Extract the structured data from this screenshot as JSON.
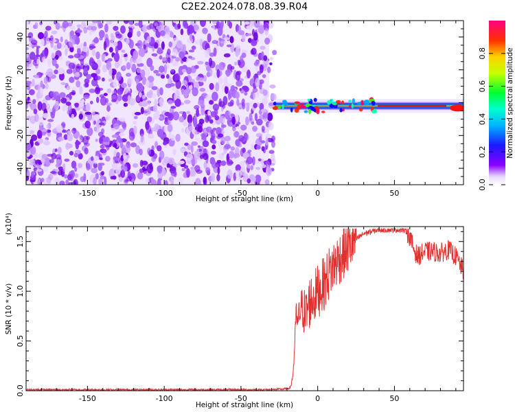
{
  "figure": {
    "title": "C2E2.2024.078.08.39.R04"
  },
  "chart_data": [
    {
      "type": "heatmap",
      "xlabel": "Height of straight line (km)",
      "ylabel": "Frequency (Hz)",
      "xlim": [
        -190,
        95
      ],
      "ylim": [
        -50,
        50
      ],
      "x_ticks": [
        -150,
        -100,
        -50,
        0,
        50
      ],
      "y_ticks": [
        -40,
        -20,
        0,
        20,
        40
      ],
      "grid": false,
      "colorbar": {
        "label": "Normalized spectral amplitude",
        "range": [
          0,
          1
        ],
        "ticks": [
          "0.0",
          "0.2",
          "0.4",
          "0.6",
          "0.8"
        ],
        "colormap": "rainbow (purple-blue-cyan-green-yellow-red-magenta)"
      },
      "features": {
        "noise_region_x": [
          -190,
          -28
        ],
        "noise_color": "#7a00e6",
        "signal_line": {
          "x_range": [
            -28,
            95
          ],
          "frequency_hz": -2,
          "description": "narrow band of high amplitude near 0 Hz"
        }
      }
    },
    {
      "type": "line",
      "xlabel": "Height of straight line (km)",
      "ylabel": "SNR (10 * v/v)",
      "y_scale_label": "(x10⁴)",
      "xlim": [
        -190,
        95
      ],
      "ylim": [
        0,
        1.65
      ],
      "x_ticks": [
        -150,
        -100,
        -50,
        0,
        50
      ],
      "y_ticks": [
        "0.0",
        "0.5",
        "1.0",
        "1.5"
      ],
      "grid": false,
      "color": "#e03030",
      "series": [
        {
          "x": [
            -190,
            -100,
            -30,
            -20,
            -18,
            -17,
            -16,
            -15,
            -14,
            -13,
            -12,
            -10,
            -8,
            -5,
            -2,
            0,
            3,
            5,
            8,
            10,
            15,
            20,
            25,
            30,
            35,
            40,
            45,
            50,
            55,
            58,
            60,
            62,
            65,
            70,
            75,
            80,
            85,
            90,
            95
          ],
          "values": [
            0.01,
            0.01,
            0.01,
            0.02,
            0.03,
            0.08,
            0.18,
            0.45,
            0.8,
            0.65,
            0.78,
            0.85,
            0.75,
            0.9,
            0.95,
            1.0,
            1.05,
            1.1,
            1.2,
            1.25,
            1.35,
            1.45,
            1.52,
            1.58,
            1.6,
            1.62,
            1.62,
            1.62,
            1.62,
            1.6,
            1.55,
            1.45,
            1.35,
            1.4,
            1.4,
            1.38,
            1.42,
            1.35,
            1.2
          ]
        }
      ]
    }
  ]
}
